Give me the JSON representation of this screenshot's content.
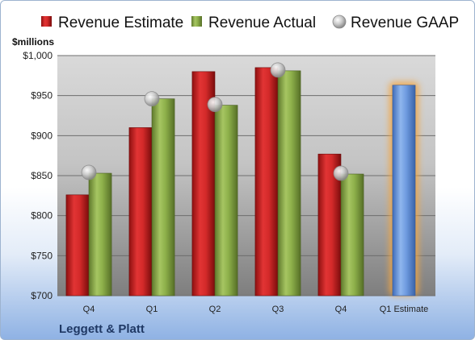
{
  "chart_data": {
    "type": "bar",
    "unit_label": "$millions",
    "company": "Leggett & Platt",
    "categories": [
      "Q4",
      "Q1",
      "Q2",
      "Q3",
      "Q4",
      "Q1 Estimate"
    ],
    "ylim": [
      700,
      1000
    ],
    "yticks": [
      "$700",
      "$750",
      "$800",
      "$850",
      "$900",
      "$950",
      "$1,000"
    ],
    "ytick_values": [
      700,
      750,
      800,
      850,
      900,
      950,
      1000
    ],
    "grid": true,
    "legend_position": "top",
    "series": [
      {
        "name": "Revenue Estimate",
        "type": "bar",
        "color": "#d42a2a",
        "values": [
          826,
          910,
          980,
          985,
          877,
          null
        ]
      },
      {
        "name": "Revenue Actual",
        "type": "bar",
        "color": "#8db04a",
        "values": [
          853,
          946,
          938,
          981,
          852,
          null
        ]
      },
      {
        "name": "Revenue GAAP",
        "type": "marker",
        "color": "#b8b8b8",
        "values": [
          854,
          946,
          939,
          982,
          853,
          null
        ]
      },
      {
        "name": "Q1 Estimate",
        "type": "bar",
        "color": "#6f9be0",
        "highlight_color": "#f4a640",
        "values": [
          null,
          null,
          null,
          null,
          null,
          963
        ]
      }
    ]
  }
}
